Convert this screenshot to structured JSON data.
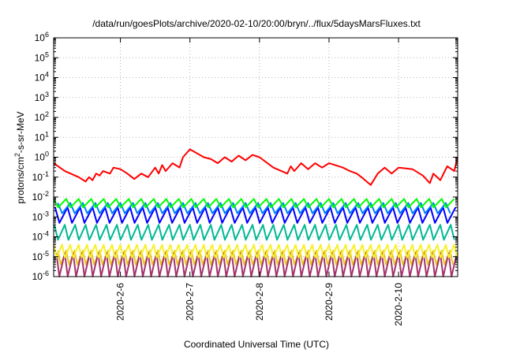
{
  "chart_data": {
    "type": "line",
    "title": "/data/run/goesPlots/archive/2020-02-10/20:00/bryn/../flux/5daysMarsFluxes.txt",
    "xlabel": "Coordinated Universal Time (UTC)",
    "ylabel": {
      "prefix": "protons/cm",
      "sup": "2",
      "suffix": "-s-sr-MeV"
    },
    "log_y": true,
    "ylim": [
      1e-06,
      1000000.0
    ],
    "yticks": [
      {
        "value": 1e-06,
        "base": "10",
        "exp": "-6"
      },
      {
        "value": 1e-05,
        "base": "10",
        "exp": "-5"
      },
      {
        "value": 0.0001,
        "base": "10",
        "exp": "-4"
      },
      {
        "value": 0.001,
        "base": "10",
        "exp": "-3"
      },
      {
        "value": 0.01,
        "base": "10",
        "exp": "-2"
      },
      {
        "value": 0.1,
        "base": "10",
        "exp": "-1"
      },
      {
        "value": 1,
        "base": "10",
        "exp": "0"
      },
      {
        "value": 10,
        "base": "10",
        "exp": "1"
      },
      {
        "value": 100,
        "base": "10",
        "exp": "2"
      },
      {
        "value": 1000,
        "base": "10",
        "exp": "3"
      },
      {
        "value": 10000,
        "base": "10",
        "exp": "4"
      },
      {
        "value": 100000,
        "base": "10",
        "exp": "5"
      },
      {
        "value": 1000000,
        "base": "10",
        "exp": "6"
      }
    ],
    "xlim": [
      5.04,
      10.85
    ],
    "xticks": [
      {
        "value": 6,
        "label": "2020-2-6"
      },
      {
        "value": 7,
        "label": "2020-2-7"
      },
      {
        "value": 8,
        "label": "2020-2-8"
      },
      {
        "value": 9,
        "label": "2020-2-9"
      },
      {
        "value": 10,
        "label": "2020-2-10"
      }
    ],
    "grid": true,
    "series": [
      {
        "color": "#ff0000",
        "x": [
          5.04,
          5.2,
          5.4,
          5.5,
          5.55,
          5.6,
          5.65,
          5.7,
          5.75,
          5.85,
          5.9,
          6.0,
          6.1,
          6.2,
          6.3,
          6.4,
          6.5,
          6.55,
          6.6,
          6.65,
          6.75,
          6.85,
          6.9,
          7.0,
          7.2,
          7.3,
          7.4,
          7.5,
          7.6,
          7.7,
          7.8,
          7.9,
          8.0,
          8.2,
          8.4,
          8.45,
          8.5,
          8.6,
          8.7,
          8.8,
          8.9,
          9.0,
          9.2,
          9.3,
          9.4,
          9.5,
          9.6,
          9.7,
          9.8,
          9.9,
          10.0,
          10.2,
          10.35,
          10.45,
          10.5,
          10.6,
          10.7,
          10.8,
          10.85
        ],
        "y": [
          0.5,
          0.2,
          0.1,
          0.06,
          0.1,
          0.07,
          0.15,
          0.12,
          0.2,
          0.15,
          0.3,
          0.25,
          0.15,
          0.08,
          0.15,
          0.1,
          0.3,
          0.15,
          0.4,
          0.2,
          0.5,
          0.3,
          1.0,
          2.5,
          1.0,
          0.8,
          0.5,
          1.0,
          0.6,
          1.2,
          0.7,
          1.3,
          1.0,
          0.3,
          0.15,
          0.35,
          0.2,
          0.5,
          0.25,
          0.5,
          0.3,
          0.5,
          0.3,
          0.2,
          0.15,
          0.08,
          0.04,
          0.15,
          0.3,
          0.15,
          0.3,
          0.25,
          0.12,
          0.05,
          0.15,
          0.07,
          0.35,
          0.2,
          1.0
        ]
      },
      {
        "color": "#00ff00",
        "period": 0.18,
        "start": 5.04,
        "low": 0.003,
        "high": 0.008
      },
      {
        "color": "#0080ff",
        "period": 0.18,
        "start": 5.1,
        "low": 0.0015,
        "high": 0.005
      },
      {
        "color": "#0000ff",
        "period": 0.18,
        "start": 5.06,
        "low": 0.0005,
        "high": 0.003
      },
      {
        "color": "#00b894",
        "period": 0.15,
        "start": 5.05,
        "low": 7e-05,
        "high": 0.0004
      },
      {
        "color": "#f8f02a",
        "period": 0.12,
        "start": 5.04,
        "low": 9e-06,
        "high": 4e-05
      },
      {
        "color": "#a3336b",
        "period": 0.12,
        "start": 5.08,
        "low": 1e-06,
        "high": 1.5e-05
      },
      {
        "color": "#e8c61f",
        "period": 0.12,
        "start": 5.1,
        "low": 4e-06,
        "high": 2e-05
      }
    ]
  }
}
